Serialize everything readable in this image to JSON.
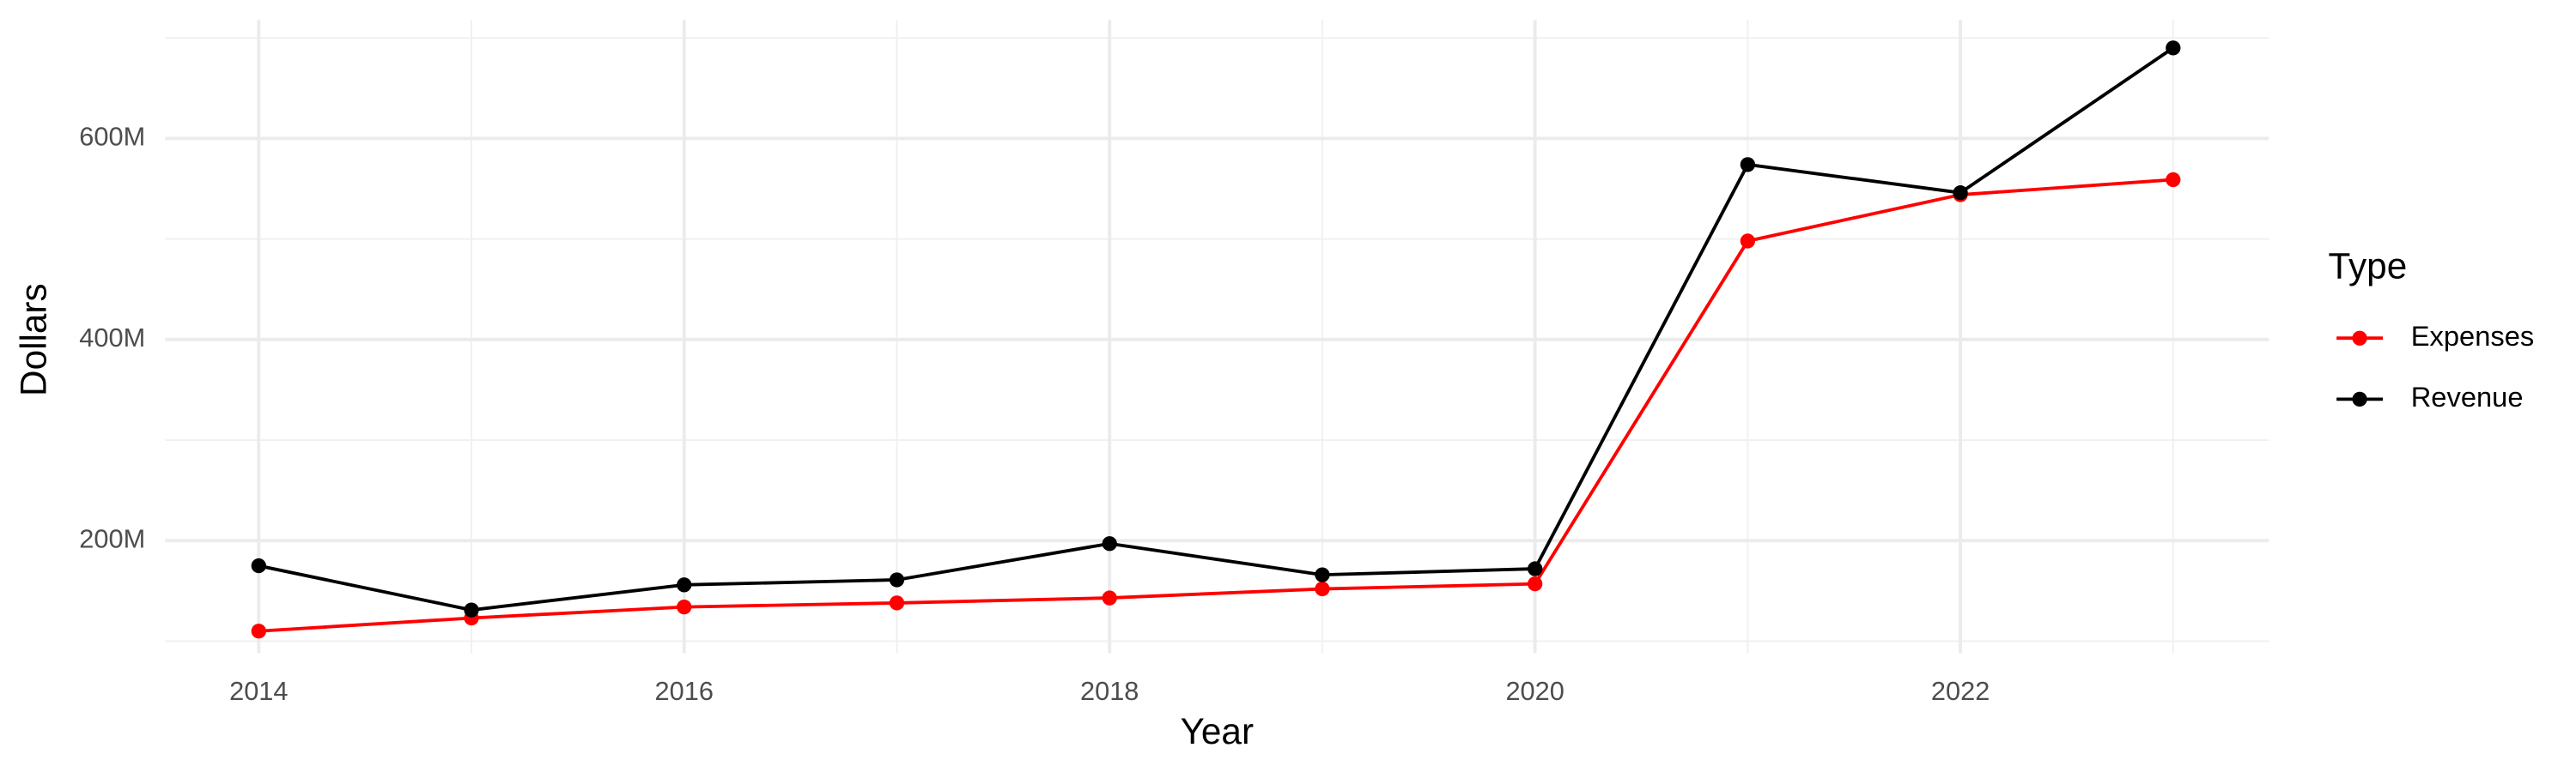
{
  "chart_data": {
    "type": "line",
    "x_label": "Year",
    "y_label": "Dollars",
    "legend_title": "Type",
    "legend_position": "right",
    "grid": true,
    "minor_grid": true,
    "x": [
      2014,
      2015,
      2016,
      2017,
      2018,
      2019,
      2020,
      2021,
      2022,
      2023
    ],
    "xlim": [
      2013.56,
      2023.45
    ],
    "xticks": [
      2014,
      2016,
      2018,
      2020,
      2022
    ],
    "ylim": [
      88000000,
      718000000
    ],
    "yticks": [
      {
        "value": 200000000,
        "label": "200M"
      },
      {
        "value": 400000000,
        "label": "400M"
      },
      {
        "value": 600000000,
        "label": "600M"
      }
    ],
    "series": [
      {
        "name": "Expenses",
        "color": "#ff0000",
        "values": [
          110000000,
          123000000,
          134000000,
          138000000,
          143000000,
          152000000,
          157000000,
          498000000,
          544000000,
          559000000
        ]
      },
      {
        "name": "Revenue",
        "color": "#000000",
        "values": [
          175000000,
          131000000,
          156000000,
          161000000,
          197000000,
          166000000,
          172000000,
          574000000,
          546000000,
          690000000
        ]
      }
    ]
  }
}
